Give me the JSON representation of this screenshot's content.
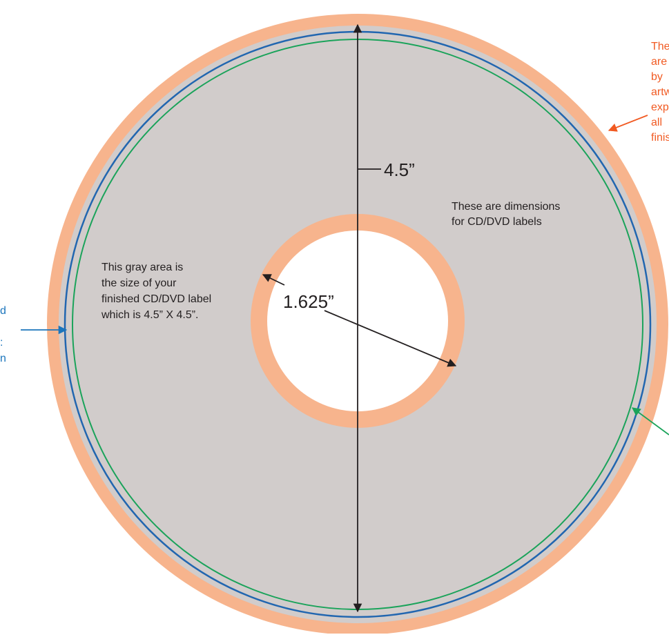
{
  "diagram": {
    "colors": {
      "bleed": "#f7b48d",
      "label_area": "#d1cccb",
      "hole": "#ffffff",
      "outer_line": "#2166b0",
      "inner_line": "#1aa35a",
      "dimension_line": "#333333",
      "note_red": "#f15a22",
      "note_blue": "#1b75bc",
      "note_green": "#1aa35a",
      "text_dark": "#231f20"
    },
    "dimensions": {
      "diameter_label": "4.5”",
      "hole_label": "1.625”"
    },
    "notes": {
      "center_note": [
        "These are dimensions",
        "for CD/DVD labels"
      ],
      "gray_area_note": [
        "This gray area is",
        "the size of your",
        "finished CD/DVD label",
        "which is 4.5” X 4.5”."
      ],
      "bleed_note_fragments": [
        "The",
        "are",
        "by",
        "artw",
        "exp",
        "all",
        "finis"
      ],
      "left_note_fragments": [
        "d",
        ":",
        "n"
      ]
    }
  }
}
